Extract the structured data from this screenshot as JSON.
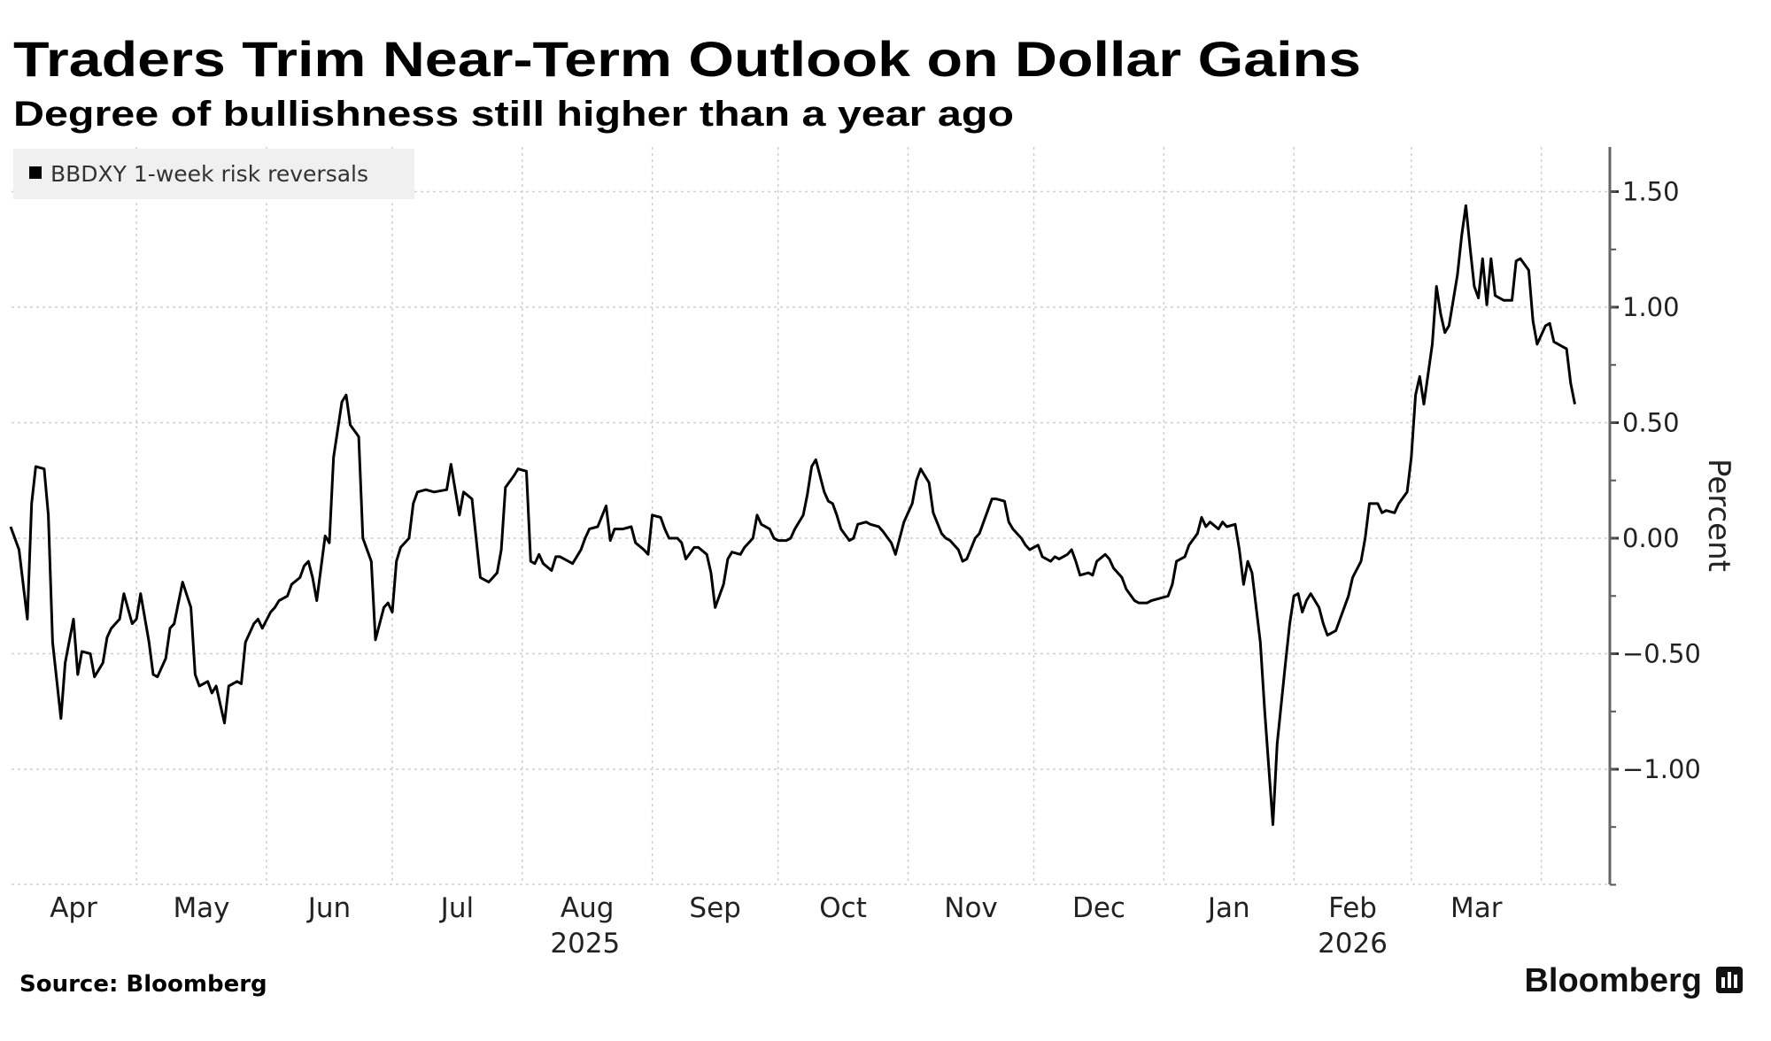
{
  "chart_data": {
    "type": "line",
    "title": "Traders Trim Near-Term Outlook on Dollar Gains",
    "subtitle": "Degree of bullishness still higher than a year ago",
    "xlabel": "",
    "ylabel": "Percent",
    "x_unit": "days since 2025-04-01",
    "ylim": [
      -1.5,
      1.69
    ],
    "xlim": [
      0,
      373
    ],
    "grid": true,
    "legend": {
      "position": "top-left",
      "entries": [
        "BBDXY 1-week risk reversals"
      ]
    },
    "y_ticks": [
      {
        "value": 1.5,
        "label": "1.50"
      },
      {
        "value": 1.0,
        "label": "1.00"
      },
      {
        "value": 0.5,
        "label": "0.50"
      },
      {
        "value": 0.0,
        "label": "0.00"
      },
      {
        "value": -0.5,
        "label": "-0.50"
      },
      {
        "value": -1.0,
        "label": "-1.00"
      }
    ],
    "x_months": [
      {
        "label": "Apr",
        "start": 0,
        "end": 30
      },
      {
        "label": "May",
        "start": 30,
        "end": 61
      },
      {
        "label": "Jun",
        "start": 61,
        "end": 91
      },
      {
        "label": "Jul",
        "start": 91,
        "end": 122
      },
      {
        "label": "Aug",
        "start": 122,
        "end": 153
      },
      {
        "label": "Sep",
        "start": 153,
        "end": 183
      },
      {
        "label": "Oct",
        "start": 183,
        "end": 214
      },
      {
        "label": "Nov",
        "start": 214,
        "end": 244
      },
      {
        "label": "Dec",
        "start": 244,
        "end": 275
      },
      {
        "label": "Jan",
        "start": 275,
        "end": 306
      },
      {
        "label": "Feb",
        "start": 306,
        "end": 334
      },
      {
        "label": "Mar",
        "start": 334,
        "end": 365
      }
    ],
    "x_years": [
      {
        "label": "2025",
        "center": 137
      },
      {
        "label": "2026",
        "center": 320
      }
    ],
    "series": [
      {
        "name": "BBDXY 1-week risk reversals",
        "color": "#000000",
        "points": [
          [
            0,
            0.05
          ],
          [
            2,
            -0.05
          ],
          [
            4,
            -0.35
          ],
          [
            5,
            0.15
          ],
          [
            6,
            0.31
          ],
          [
            8,
            0.3
          ],
          [
            9,
            0.1
          ],
          [
            10,
            -0.45
          ],
          [
            12,
            -0.78
          ],
          [
            13,
            -0.54
          ],
          [
            15,
            -0.35
          ],
          [
            16,
            -0.59
          ],
          [
            17,
            -0.49
          ],
          [
            19,
            -0.5
          ],
          [
            20,
            -0.6
          ],
          [
            22,
            -0.54
          ],
          [
            23,
            -0.43
          ],
          [
            24,
            -0.39
          ],
          [
            26,
            -0.35
          ],
          [
            27,
            -0.24
          ],
          [
            29,
            -0.37
          ],
          [
            30,
            -0.35
          ],
          [
            31,
            -0.24
          ],
          [
            33,
            -0.45
          ],
          [
            34,
            -0.59
          ],
          [
            35,
            -0.6
          ],
          [
            37,
            -0.52
          ],
          [
            38,
            -0.39
          ],
          [
            39,
            -0.37
          ],
          [
            41,
            -0.19
          ],
          [
            43,
            -0.3
          ],
          [
            44,
            -0.59
          ],
          [
            45,
            -0.64
          ],
          [
            47,
            -0.62
          ],
          [
            48,
            -0.67
          ],
          [
            49,
            -0.64
          ],
          [
            51,
            -0.8
          ],
          [
            52,
            -0.64
          ],
          [
            54,
            -0.62
          ],
          [
            55,
            -0.63
          ],
          [
            56,
            -0.45
          ],
          [
            58,
            -0.37
          ],
          [
            59,
            -0.35
          ],
          [
            60,
            -0.39
          ],
          [
            62,
            -0.32
          ],
          [
            63,
            -0.3
          ],
          [
            64,
            -0.27
          ],
          [
            66,
            -0.25
          ],
          [
            67,
            -0.2
          ],
          [
            69,
            -0.17
          ],
          [
            70,
            -0.12
          ],
          [
            71,
            -0.1
          ],
          [
            72,
            -0.17
          ],
          [
            73,
            -0.27
          ],
          [
            75,
            0.01
          ],
          [
            76,
            -0.02
          ],
          [
            77,
            0.35
          ],
          [
            79,
            0.59
          ],
          [
            80,
            0.62
          ],
          [
            81,
            0.49
          ],
          [
            83,
            0.44
          ],
          [
            84,
            0.0
          ],
          [
            86,
            -0.1
          ],
          [
            87,
            -0.44
          ],
          [
            89,
            -0.3
          ],
          [
            90,
            -0.28
          ],
          [
            91,
            -0.32
          ],
          [
            92,
            -0.1
          ],
          [
            93,
            -0.04
          ],
          [
            95,
            0.0
          ],
          [
            96,
            0.15
          ],
          [
            97,
            0.2
          ],
          [
            99,
            0.21
          ],
          [
            101,
            0.2
          ],
          [
            104,
            0.21
          ],
          [
            105,
            0.32
          ],
          [
            107,
            0.1
          ],
          [
            108,
            0.2
          ],
          [
            110,
            0.17
          ],
          [
            111,
            0.0
          ],
          [
            112,
            -0.17
          ],
          [
            114,
            -0.19
          ],
          [
            116,
            -0.15
          ],
          [
            117,
            -0.05
          ],
          [
            118,
            0.22
          ],
          [
            120,
            0.27
          ],
          [
            121,
            0.3
          ],
          [
            123,
            0.29
          ],
          [
            124,
            -0.1
          ],
          [
            125,
            -0.11
          ],
          [
            126,
            -0.07
          ],
          [
            127,
            -0.11
          ],
          [
            129,
            -0.14
          ],
          [
            130,
            -0.08
          ],
          [
            131,
            -0.08
          ],
          [
            133,
            -0.1
          ],
          [
            134,
            -0.11
          ],
          [
            136,
            -0.05
          ],
          [
            137,
            0.0
          ],
          [
            138,
            0.04
          ],
          [
            140,
            0.05
          ],
          [
            142,
            0.14
          ],
          [
            143,
            -0.01
          ],
          [
            144,
            0.04
          ],
          [
            146,
            0.04
          ],
          [
            148,
            0.05
          ],
          [
            149,
            -0.02
          ],
          [
            151,
            -0.05
          ],
          [
            152,
            -0.07
          ],
          [
            153,
            0.1
          ],
          [
            155,
            0.09
          ],
          [
            156,
            0.04
          ],
          [
            157,
            0.0
          ],
          [
            159,
            0.0
          ],
          [
            160,
            -0.02
          ],
          [
            161,
            -0.09
          ],
          [
            163,
            -0.04
          ],
          [
            164,
            -0.04
          ],
          [
            166,
            -0.07
          ],
          [
            167,
            -0.15
          ],
          [
            168,
            -0.3
          ],
          [
            170,
            -0.2
          ],
          [
            171,
            -0.09
          ],
          [
            172,
            -0.06
          ],
          [
            174,
            -0.07
          ],
          [
            175,
            -0.04
          ],
          [
            177,
            0.0
          ],
          [
            178,
            0.1
          ],
          [
            179,
            0.06
          ],
          [
            181,
            0.04
          ],
          [
            182,
            0.0
          ],
          [
            183,
            -0.01
          ],
          [
            185,
            -0.01
          ],
          [
            186,
            0.0
          ],
          [
            187,
            0.04
          ],
          [
            189,
            0.1
          ],
          [
            190,
            0.19
          ],
          [
            191,
            0.31
          ],
          [
            192,
            0.34
          ],
          [
            194,
            0.2
          ],
          [
            195,
            0.16
          ],
          [
            196,
            0.15
          ],
          [
            197,
            0.1
          ],
          [
            198,
            0.04
          ],
          [
            200,
            -0.01
          ],
          [
            201,
            0.0
          ],
          [
            202,
            0.06
          ],
          [
            204,
            0.07
          ],
          [
            205,
            0.06
          ],
          [
            207,
            0.05
          ],
          [
            208,
            0.03
          ],
          [
            210,
            -0.02
          ],
          [
            211,
            -0.07
          ],
          [
            213,
            0.07
          ],
          [
            215,
            0.15
          ],
          [
            216,
            0.25
          ],
          [
            217,
            0.3
          ],
          [
            219,
            0.24
          ],
          [
            220,
            0.11
          ],
          [
            222,
            0.02
          ],
          [
            223,
            0.0
          ],
          [
            224,
            -0.01
          ],
          [
            226,
            -0.05
          ],
          [
            227,
            -0.1
          ],
          [
            228,
            -0.09
          ],
          [
            230,
            0.0
          ],
          [
            231,
            0.02
          ],
          [
            233,
            0.12
          ],
          [
            234,
            0.17
          ],
          [
            235,
            0.17
          ],
          [
            237,
            0.16
          ],
          [
            238,
            0.07
          ],
          [
            239,
            0.04
          ],
          [
            241,
            0.0
          ],
          [
            242,
            -0.03
          ],
          [
            243,
            -0.05
          ],
          [
            245,
            -0.03
          ],
          [
            246,
            -0.08
          ],
          [
            248,
            -0.1
          ],
          [
            249,
            -0.08
          ],
          [
            250,
            -0.09
          ],
          [
            252,
            -0.07
          ],
          [
            253,
            -0.05
          ],
          [
            254,
            -0.1
          ],
          [
            255,
            -0.16
          ],
          [
            257,
            -0.15
          ],
          [
            258,
            -0.16
          ],
          [
            259,
            -0.1
          ],
          [
            261,
            -0.07
          ],
          [
            262,
            -0.09
          ],
          [
            263,
            -0.13
          ],
          [
            265,
            -0.17
          ],
          [
            266,
            -0.22
          ],
          [
            268,
            -0.27
          ],
          [
            269,
            -0.28
          ],
          [
            271,
            -0.28
          ],
          [
            272,
            -0.27
          ],
          [
            274,
            -0.26
          ],
          [
            276,
            -0.25
          ],
          [
            277,
            -0.2
          ],
          [
            278,
            -0.1
          ],
          [
            280,
            -0.08
          ],
          [
            281,
            -0.03
          ],
          [
            283,
            0.02
          ],
          [
            284,
            0.09
          ],
          [
            285,
            0.05
          ],
          [
            286,
            0.07
          ],
          [
            288,
            0.04
          ],
          [
            289,
            0.07
          ],
          [
            290,
            0.05
          ],
          [
            292,
            0.06
          ],
          [
            293,
            -0.05
          ],
          [
            294,
            -0.2
          ],
          [
            295,
            -0.1
          ],
          [
            296,
            -0.15
          ],
          [
            298,
            -0.45
          ],
          [
            299,
            -0.74
          ],
          [
            300,
            -0.99
          ],
          [
            301,
            -1.24
          ],
          [
            302,
            -0.89
          ],
          [
            304,
            -0.54
          ],
          [
            305,
            -0.37
          ],
          [
            306,
            -0.25
          ],
          [
            307,
            -0.24
          ],
          [
            308,
            -0.32
          ],
          [
            309,
            -0.27
          ],
          [
            310,
            -0.24
          ],
          [
            312,
            -0.3
          ],
          [
            313,
            -0.37
          ],
          [
            314,
            -0.42
          ],
          [
            316,
            -0.4
          ],
          [
            317,
            -0.35
          ],
          [
            319,
            -0.25
          ],
          [
            320,
            -0.17
          ],
          [
            322,
            -0.1
          ],
          [
            323,
            0.0
          ],
          [
            324,
            0.15
          ],
          [
            326,
            0.15
          ],
          [
            327,
            0.11
          ],
          [
            328,
            0.12
          ],
          [
            330,
            0.11
          ],
          [
            331,
            0.15
          ],
          [
            333,
            0.2
          ],
          [
            334,
            0.35
          ],
          [
            335,
            0.62
          ],
          [
            336,
            0.7
          ],
          [
            337,
            0.58
          ],
          [
            339,
            0.84
          ],
          [
            340,
            1.09
          ],
          [
            341,
            0.97
          ],
          [
            342,
            0.89
          ],
          [
            343,
            0.92
          ],
          [
            345,
            1.14
          ],
          [
            346,
            1.31
          ],
          [
            347,
            1.44
          ],
          [
            348,
            1.26
          ],
          [
            349,
            1.09
          ],
          [
            350,
            1.04
          ],
          [
            351,
            1.21
          ],
          [
            352,
            1.01
          ],
          [
            353,
            1.21
          ],
          [
            354,
            1.05
          ],
          [
            356,
            1.03
          ],
          [
            358,
            1.03
          ],
          [
            359,
            1.2
          ],
          [
            360,
            1.21
          ],
          [
            362,
            1.16
          ],
          [
            363,
            0.94
          ],
          [
            364,
            0.84
          ],
          [
            366,
            0.92
          ],
          [
            367,
            0.93
          ],
          [
            368,
            0.85
          ],
          [
            370,
            0.83
          ],
          [
            371,
            0.82
          ],
          [
            372,
            0.67
          ],
          [
            373,
            0.58
          ]
        ]
      }
    ]
  },
  "footer": {
    "source": "Source: Bloomberg",
    "brand": "Bloomberg"
  }
}
